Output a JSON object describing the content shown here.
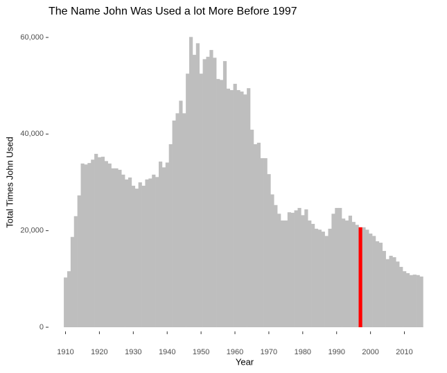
{
  "chart_data": {
    "type": "bar",
    "title": "The Name John Was Used a lot More Before 1997",
    "xlabel": "Year",
    "ylabel": "Total Times John Used",
    "x": [
      1910,
      1911,
      1912,
      1913,
      1914,
      1915,
      1916,
      1917,
      1918,
      1919,
      1920,
      1921,
      1922,
      1923,
      1924,
      1925,
      1926,
      1927,
      1928,
      1929,
      1930,
      1931,
      1932,
      1933,
      1934,
      1935,
      1936,
      1937,
      1938,
      1939,
      1940,
      1941,
      1942,
      1943,
      1944,
      1945,
      1946,
      1947,
      1948,
      1949,
      1950,
      1951,
      1952,
      1953,
      1954,
      1955,
      1956,
      1957,
      1958,
      1959,
      1960,
      1961,
      1962,
      1963,
      1964,
      1965,
      1966,
      1967,
      1968,
      1969,
      1970,
      1971,
      1972,
      1973,
      1974,
      1975,
      1976,
      1977,
      1978,
      1979,
      1980,
      1981,
      1982,
      1983,
      1984,
      1985,
      1986,
      1987,
      1988,
      1989,
      1990,
      1991,
      1992,
      1993,
      1994,
      1995,
      1996,
      1997,
      1998,
      1999,
      2000,
      2001,
      2002,
      2003,
      2004,
      2005,
      2006,
      2007,
      2008,
      2009,
      2010,
      2011,
      2012,
      2013,
      2014,
      2015
    ],
    "values": [
      10300,
      11600,
      18700,
      23000,
      27300,
      33900,
      33700,
      34000,
      34700,
      35900,
      35200,
      35300,
      34400,
      33900,
      32900,
      32900,
      32600,
      31600,
      30600,
      31000,
      29300,
      28700,
      30000,
      29300,
      30600,
      30800,
      31600,
      31100,
      34300,
      33100,
      34100,
      37900,
      42800,
      44300,
      46900,
      44300,
      52500,
      60100,
      56400,
      58800,
      52500,
      55500,
      56000,
      57400,
      55800,
      51400,
      51200,
      55100,
      49400,
      49100,
      50400,
      49100,
      48800,
      48200,
      49500,
      40900,
      37900,
      38200,
      35000,
      35000,
      31700,
      27500,
      25300,
      23500,
      22100,
      22100,
      23800,
      23700,
      24200,
      24700,
      23200,
      24400,
      22100,
      21400,
      20400,
      20200,
      19800,
      18900,
      20400,
      23500,
      24700,
      24700,
      22500,
      22100,
      23100,
      21800,
      21200,
      20700,
      20700,
      20200,
      19400,
      18900,
      17800,
      17500,
      15800,
      14100,
      14800,
      14500,
      13600,
      12500,
      11600,
      11200,
      10800,
      10900,
      10800,
      10500
    ],
    "color": "#bebebe",
    "highlight_x": 1997,
    "highlight_color": "#ff0000",
    "xlim": [
      1907.5,
      2017.5
    ],
    "xticks": [
      1910,
      1920,
      1930,
      1940,
      1950,
      1960,
      1970,
      1980,
      1990,
      2000,
      2010
    ],
    "ylim": [
      0,
      60000
    ],
    "yticks": [
      0,
      {
        "value": 20000,
        "label": "20,000"
      },
      {
        "value": 40000,
        "label": "40,000"
      },
      {
        "value": 60000,
        "label": "60,000"
      }
    ],
    "grid": false
  }
}
